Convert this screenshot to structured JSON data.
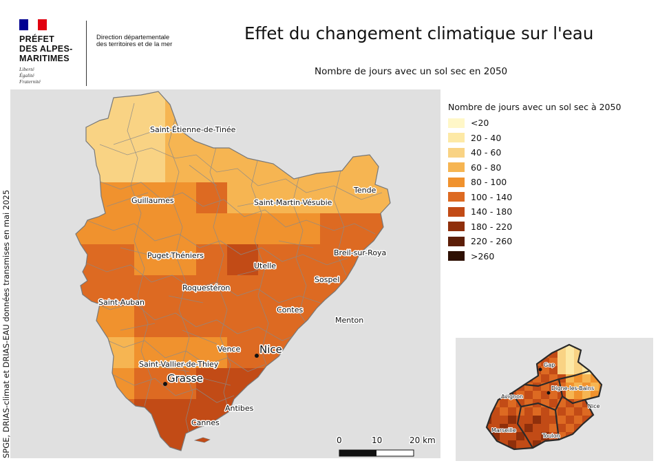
{
  "header": {
    "institution": [
      "PRÉFET",
      "DES ALPES-",
      "MARITIMES"
    ],
    "motto": [
      "Liberté",
      "Égalité",
      "Fraternité"
    ],
    "directorate": [
      "Direction départementale",
      "des territoires et de la mer"
    ],
    "flag_colors": [
      "#000091",
      "#ffffff",
      "#e1000f"
    ]
  },
  "title": "Effet du changement climatique sur l'eau",
  "subtitle": "Nombre de jours avec un sol sec en 2050",
  "source": "SPGE, DRIAS-climat et DRIAS-EAU données transmises en mai 2025",
  "legend": {
    "title": "Nombre de jours avec un sol sec à 2050",
    "items": [
      {
        "label": "<20",
        "color": "#fff7c8"
      },
      {
        "label": "20 - 40",
        "color": "#fde9a6"
      },
      {
        "label": "40 - 60",
        "color": "#f9d384"
      },
      {
        "label": "60 - 80",
        "color": "#f6b552"
      },
      {
        "label": "80 - 100",
        "color": "#f0922e"
      },
      {
        "label": "100 - 140",
        "color": "#dd6a22"
      },
      {
        "label": "140 - 180",
        "color": "#c24b16"
      },
      {
        "label": "180 - 220",
        "color": "#8f2f0b"
      },
      {
        "label": "220 - 260",
        "color": "#5c1e07"
      },
      {
        "label": ">260",
        "color": "#2e1003"
      }
    ]
  },
  "map": {
    "place_labels": [
      "Saint-Étienne-de-Tinée",
      "Guillaumes",
      "Saint-Martin-Vésubie",
      "Tende",
      "Puget-Théniers",
      "Utelle",
      "Breil-sur-Roya",
      "Roquestéron",
      "Sospel",
      "Saint-Auban",
      "Contes",
      "Menton",
      "Vence",
      "Nice",
      "Saint-Vallier-de-Thiey",
      "Grasse",
      "Antibes",
      "Cannes"
    ],
    "scale_bar": {
      "ticks": [
        "0",
        "10",
        "20 km"
      ]
    }
  },
  "inset": {
    "labels": [
      "Gap",
      "Digne-les-Bains",
      "Avignon",
      "Nice",
      "Marseille",
      "Toulon"
    ]
  }
}
